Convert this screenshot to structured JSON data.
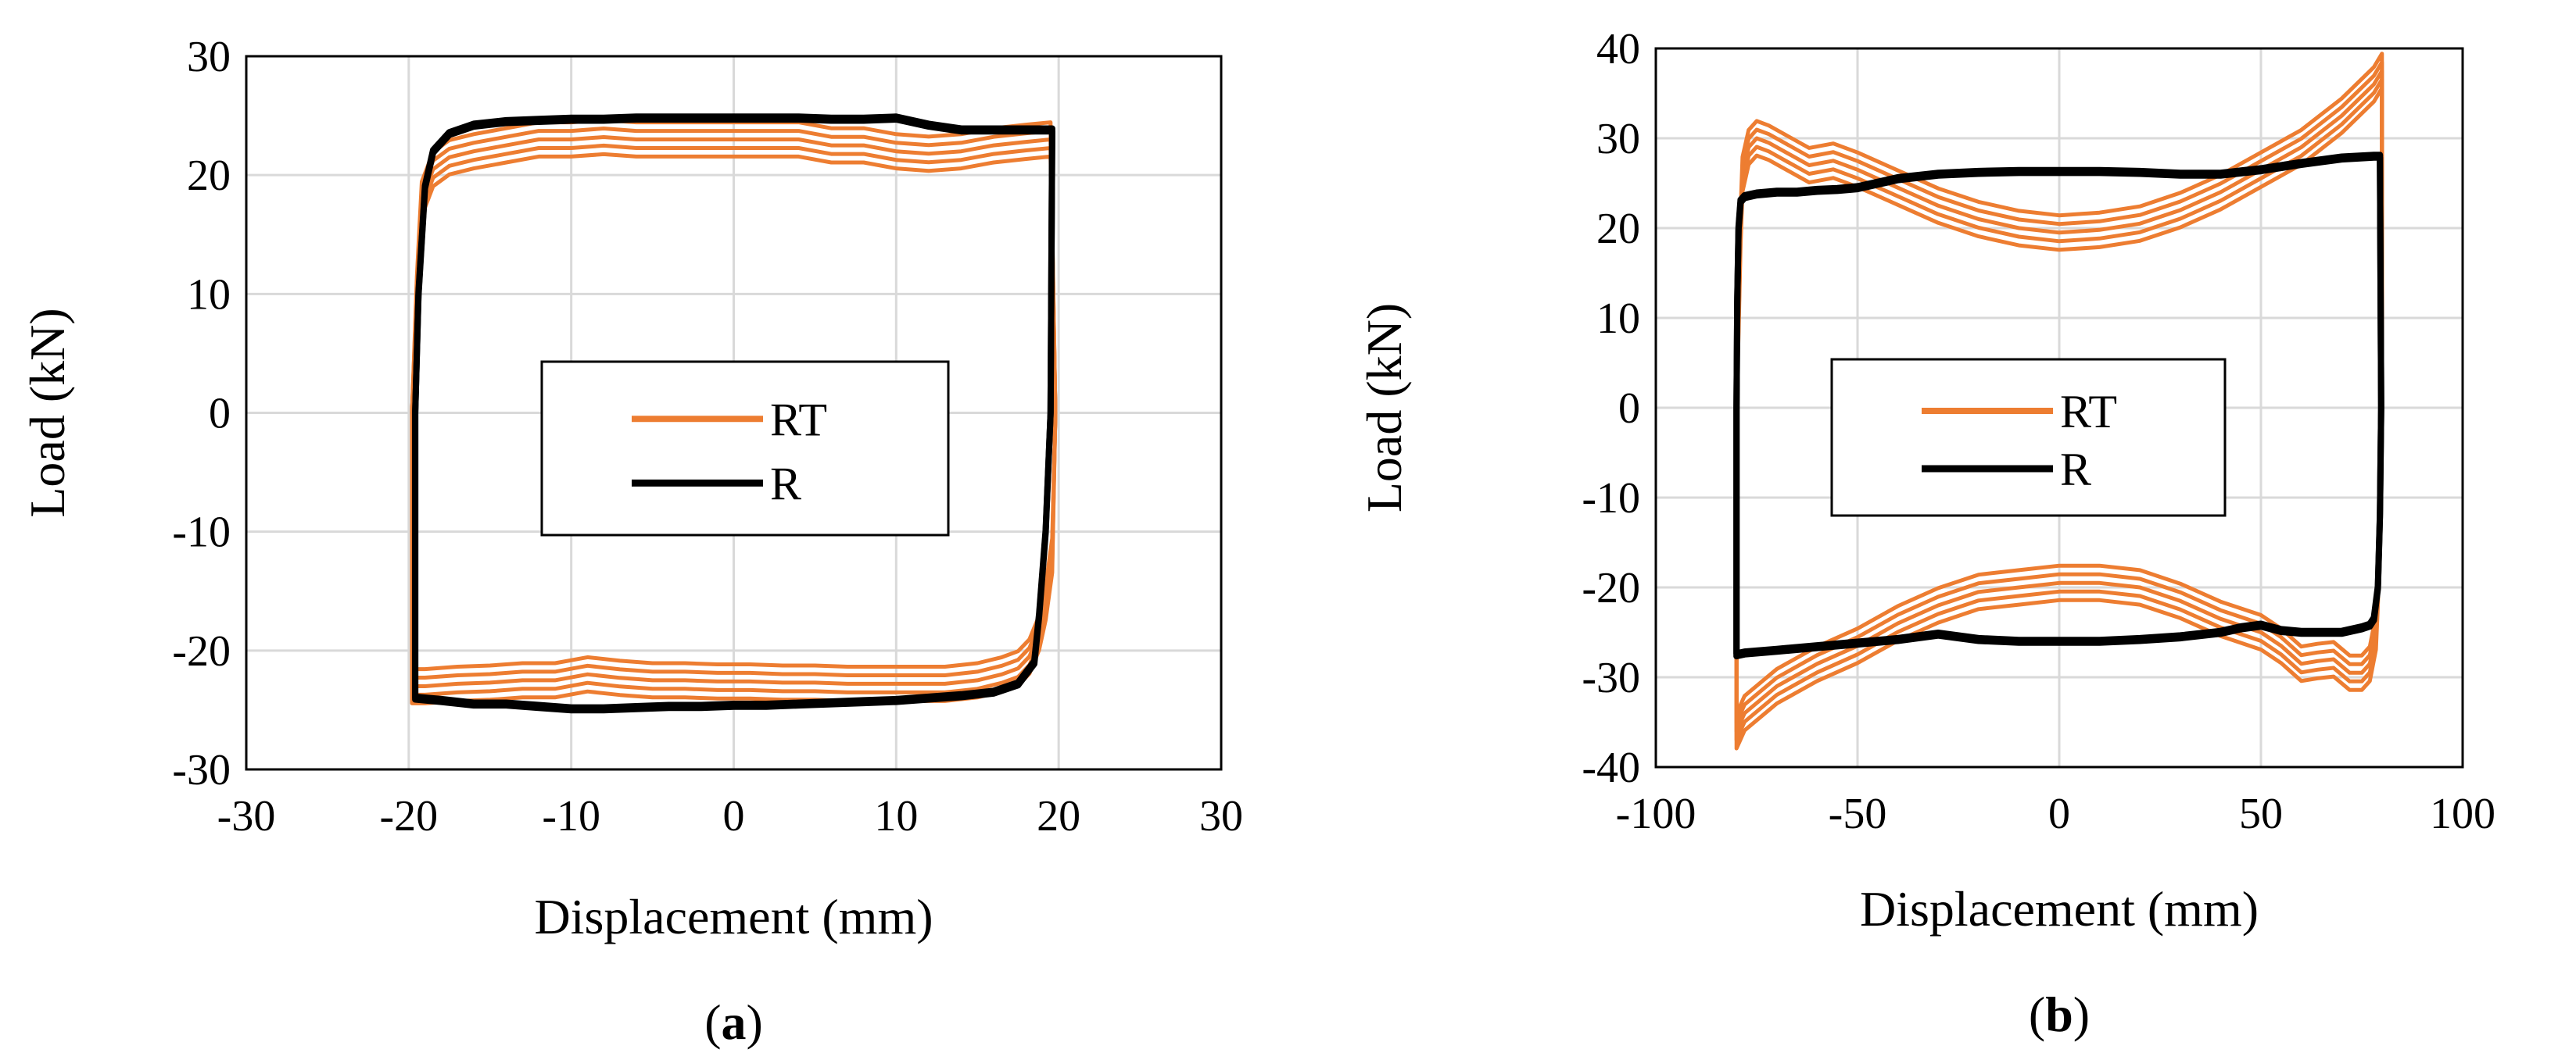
{
  "chart_data": [
    {
      "type": "line",
      "panel_label_open": "(",
      "panel_label_letter": "a",
      "panel_label_close": ")",
      "xlabel": "Displacement (mm)",
      "ylabel": "Load (kN)",
      "xlim": [
        -30,
        30
      ],
      "ylim": [
        -30,
        30
      ],
      "xticks": [
        -30,
        -20,
        -10,
        0,
        10,
        20,
        30
      ],
      "yticks": [
        -30,
        -20,
        -10,
        0,
        10,
        20,
        30
      ],
      "grid": true,
      "legend_position": "center",
      "series": [
        {
          "name": "RT",
          "color": "#ED7D31",
          "loops": 5,
          "x": [
            -19.8,
            -19.5,
            -19.2,
            -18.5,
            -17.5,
            -16,
            -14,
            -12,
            -10,
            -8,
            -6,
            -4,
            -2,
            0,
            2,
            4,
            6,
            8,
            10,
            12,
            14,
            16,
            18,
            19.5,
            19.8,
            19.6,
            19.2,
            18.8,
            18.2,
            17.5,
            16.5,
            15,
            13,
            11,
            9,
            7,
            5,
            3,
            1,
            -1,
            -3,
            -5,
            -7,
            -9,
            -11,
            -13,
            -15,
            -17,
            -19,
            -19.8,
            -19.8
          ],
          "y": [
            0,
            10,
            18,
            20.5,
            21.5,
            22,
            22.5,
            23,
            23,
            23.2,
            23,
            23,
            23,
            23,
            23,
            23,
            22.5,
            22.5,
            22,
            21.8,
            22,
            22.5,
            22.8,
            23,
            0,
            -12,
            -16,
            -18.5,
            -20.5,
            -21.5,
            -22,
            -22.5,
            -22.8,
            -22.8,
            -22.8,
            -22.8,
            -22.7,
            -22.7,
            -22.6,
            -22.6,
            -22.5,
            -22.5,
            -22.3,
            -22,
            -22.5,
            -22.5,
            -22.7,
            -22.8,
            -23,
            -23,
            0
          ]
        },
        {
          "name": "R",
          "color": "#000000",
          "loops": 2,
          "x": [
            -19.6,
            -19.4,
            -19,
            -18.5,
            -17.5,
            -16,
            -14,
            -12,
            -10,
            -8,
            -6,
            -4,
            -2,
            0,
            2,
            4,
            6,
            8,
            10,
            12,
            14,
            16,
            18,
            19.6,
            19.5,
            19.2,
            18.8,
            18.5,
            17.5,
            16,
            14,
            12,
            10,
            8,
            6,
            4,
            2,
            0,
            -2,
            -4,
            -6,
            -8,
            -10,
            -12,
            -14,
            -16,
            -18,
            -19.6,
            -19.6
          ],
          "y": [
            0,
            10,
            19,
            22,
            23.5,
            24.2,
            24.5,
            24.6,
            24.7,
            24.7,
            24.8,
            24.8,
            24.8,
            24.8,
            24.8,
            24.8,
            24.7,
            24.7,
            24.8,
            24.2,
            23.8,
            23.8,
            23.8,
            23.8,
            0,
            -10,
            -17,
            -21,
            -22.8,
            -23.5,
            -23.8,
            -24,
            -24.2,
            -24.3,
            -24.4,
            -24.5,
            -24.6,
            -24.6,
            -24.7,
            -24.7,
            -24.8,
            -24.9,
            -24.9,
            -24.7,
            -24.5,
            -24.5,
            -24.2,
            -24,
            0
          ]
        }
      ]
    },
    {
      "type": "line",
      "panel_label_open": "(",
      "panel_label_letter": "b",
      "panel_label_close": ")",
      "xlabel": "Displacement (mm)",
      "ylabel": "Load (kN)",
      "xlim": [
        -100,
        100
      ],
      "ylim": [
        -40,
        40
      ],
      "xticks": [
        -100,
        -50,
        0,
        50,
        100
      ],
      "yticks": [
        -40,
        -30,
        -20,
        -10,
        0,
        10,
        20,
        30,
        40
      ],
      "grid": true,
      "legend_position": "center",
      "series": [
        {
          "name": "RT",
          "color": "#ED7D31",
          "loops": 5,
          "x": [
            -80,
            -79.5,
            -79,
            -78.5,
            -77,
            -75,
            -72,
            -68,
            -62,
            -56,
            -50,
            -40,
            -30,
            -20,
            -10,
            0,
            10,
            20,
            30,
            40,
            50,
            60,
            70,
            78,
            80,
            80,
            79.5,
            79,
            78.5,
            77,
            75,
            72,
            68,
            64,
            60,
            55,
            50,
            40,
            30,
            20,
            10,
            0,
            -10,
            -20,
            -30,
            -40,
            -50,
            -60,
            -70,
            -78,
            -80,
            -80
          ],
          "y": [
            0,
            10,
            20,
            26,
            29,
            30,
            29.5,
            28.5,
            27,
            27.5,
            26.5,
            24.5,
            22.5,
            21,
            20,
            19.5,
            19.8,
            20.5,
            22,
            24,
            26.5,
            29,
            32.5,
            36,
            37.5,
            0,
            -12,
            -20,
            -25,
            -28.5,
            -29.5,
            -29.5,
            -28,
            -28.2,
            -28.5,
            -26.5,
            -25,
            -23.5,
            -21.5,
            -20,
            -19.5,
            -19.5,
            -20,
            -20.5,
            -22,
            -24,
            -26.5,
            -28.5,
            -31,
            -34,
            -36,
            0
          ]
        },
        {
          "name": "R",
          "color": "#000000",
          "loops": 2,
          "x": [
            -80,
            -79.8,
            -79.5,
            -79,
            -78,
            -75,
            -70,
            -65,
            -60,
            -55,
            -50,
            -40,
            -30,
            -20,
            -10,
            0,
            10,
            20,
            30,
            40,
            50,
            60,
            70,
            78,
            79.5,
            79.8,
            79.5,
            79,
            78,
            77,
            75,
            70,
            65,
            60,
            55,
            50,
            45,
            40,
            30,
            20,
            10,
            0,
            -10,
            -20,
            -30,
            -40,
            -50,
            -60,
            -70,
            -78,
            -80,
            -80
          ],
          "y": [
            0,
            12,
            20,
            23,
            23.5,
            23.8,
            24,
            24,
            24.2,
            24.3,
            24.5,
            25.5,
            26,
            26.2,
            26.3,
            26.3,
            26.3,
            26.2,
            26,
            26,
            26.5,
            27.2,
            27.8,
            28,
            28,
            0,
            -12,
            -20,
            -23.5,
            -24.2,
            -24.5,
            -25,
            -25,
            -25,
            -24.8,
            -24.2,
            -24.5,
            -25,
            -25.5,
            -25.8,
            -26,
            -26,
            -26,
            -25.8,
            -25.2,
            -25.8,
            -26.2,
            -26.6,
            -27,
            -27.3,
            -27.5,
            0
          ]
        }
      ]
    }
  ]
}
